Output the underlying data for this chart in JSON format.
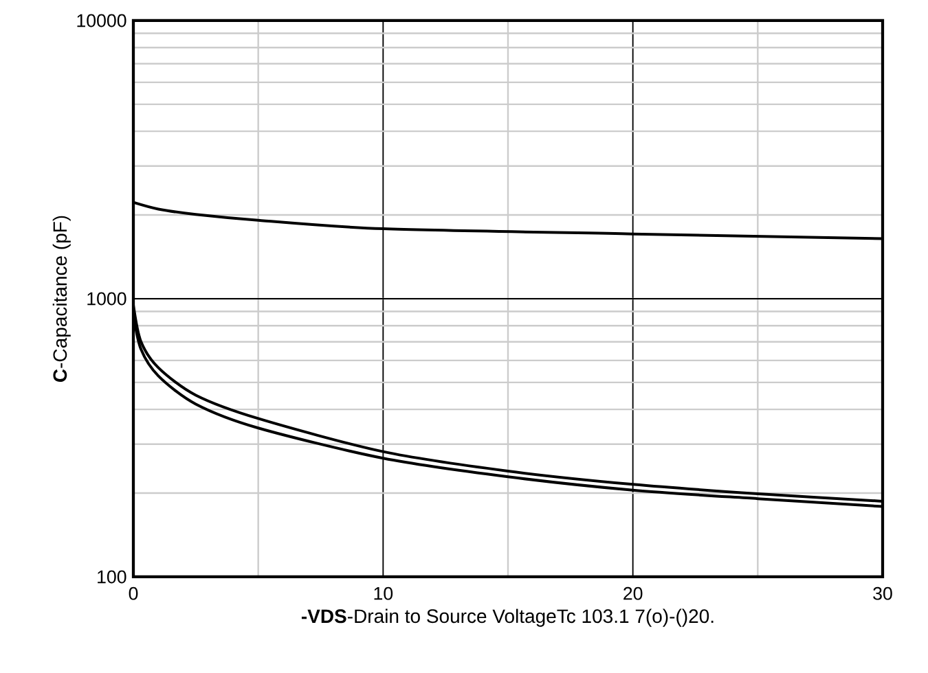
{
  "chart_data": {
    "type": "line",
    "xlabel": "**-VDS**-Drain to Source VoltageTc 103.1  7(o)-()20.",
    "ylabel": "**C**-Capacitance (pF)",
    "xlim": [
      0,
      30
    ],
    "ylim": [
      100,
      10000
    ],
    "xticks": [
      0,
      10,
      20,
      30
    ],
    "yticks": [
      100,
      1000,
      10000
    ],
    "log": "y",
    "grid": true,
    "marker": "none",
    "line_style": "solid",
    "series": [
      {
        "color": "#000000",
        "x": [
          0,
          1,
          2.5,
          5,
          10,
          20,
          30
        ],
        "values": [
          2220,
          2100,
          2010,
          1915,
          1785,
          1710,
          1645
        ]
      },
      {
        "color": "#000000",
        "x": [
          0,
          0.3,
          1,
          2.5,
          5,
          10,
          15,
          20,
          25,
          30
        ],
        "values": [
          950,
          703,
          565,
          450,
          371,
          282,
          240,
          215,
          199,
          187
        ]
      },
      {
        "color": "#000000",
        "x": [
          0,
          0.3,
          1,
          2.5,
          5,
          10,
          15,
          20,
          25,
          30
        ],
        "values": [
          880,
          660,
          528,
          418,
          343,
          267,
          229,
          205,
          191,
          179
        ]
      }
    ]
  }
}
